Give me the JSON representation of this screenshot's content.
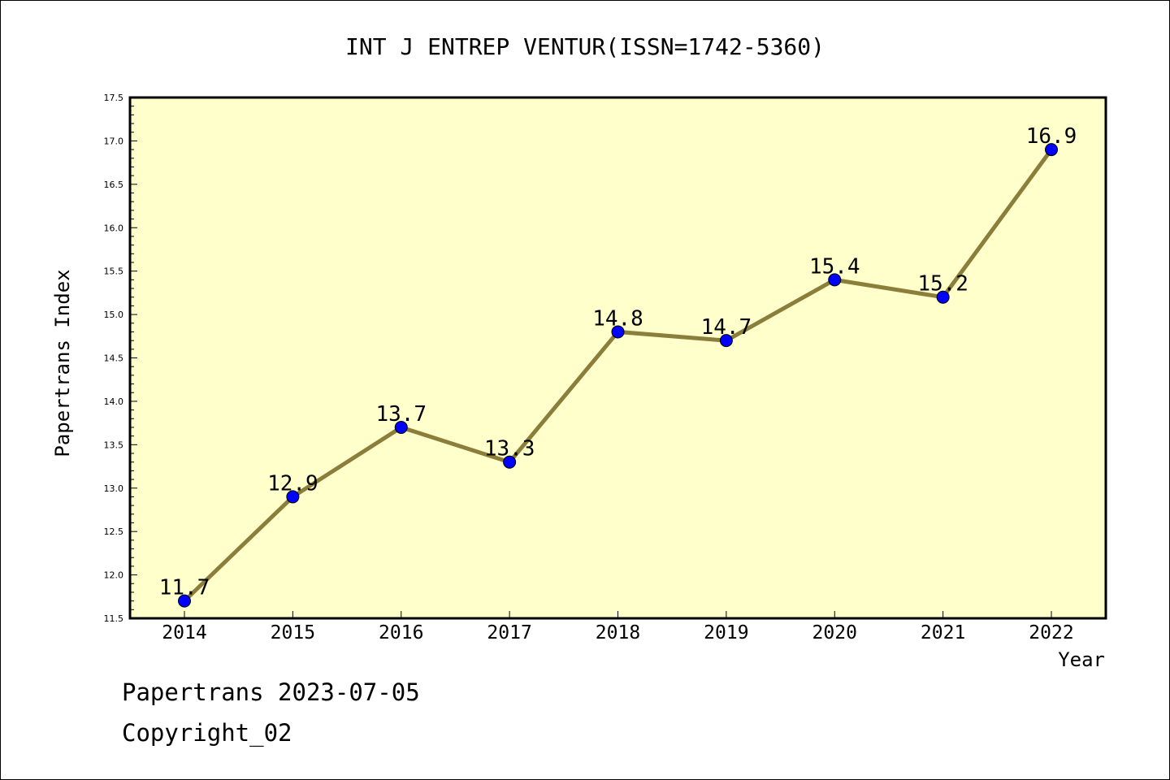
{
  "chart_data": {
    "type": "line",
    "title": "INT J ENTREP VENTUR(ISSN=1742-5360)",
    "xlabel": "Year",
    "ylabel": "Papertrans Index",
    "categories": [
      "2014",
      "2015",
      "2016",
      "2017",
      "2018",
      "2019",
      "2020",
      "2021",
      "2022"
    ],
    "series": [
      {
        "values": [
          11.7,
          12.9,
          13.7,
          13.3,
          14.8,
          14.7,
          15.4,
          15.2,
          16.9
        ]
      }
    ],
    "data_labels": [
      "11.7",
      "12.9",
      "13.7",
      "13.3",
      "14.8",
      "14.7",
      "15.4",
      "15.2",
      "16.9"
    ],
    "ylim": [
      11.5,
      17.5
    ],
    "yticks": [
      "11.5",
      "12.0",
      "12.5",
      "13.0",
      "13.5",
      "14.0",
      "14.5",
      "15.0",
      "15.5",
      "16.0",
      "16.5",
      "17.0",
      "17.5"
    ],
    "grid": false,
    "colors": {
      "plot_background": "#ffffcc",
      "line": "#8b7d3a",
      "marker": "#0000ff"
    }
  },
  "footer": {
    "line1": "Papertrans 2023-07-05",
    "line2": "Copyright_02"
  }
}
